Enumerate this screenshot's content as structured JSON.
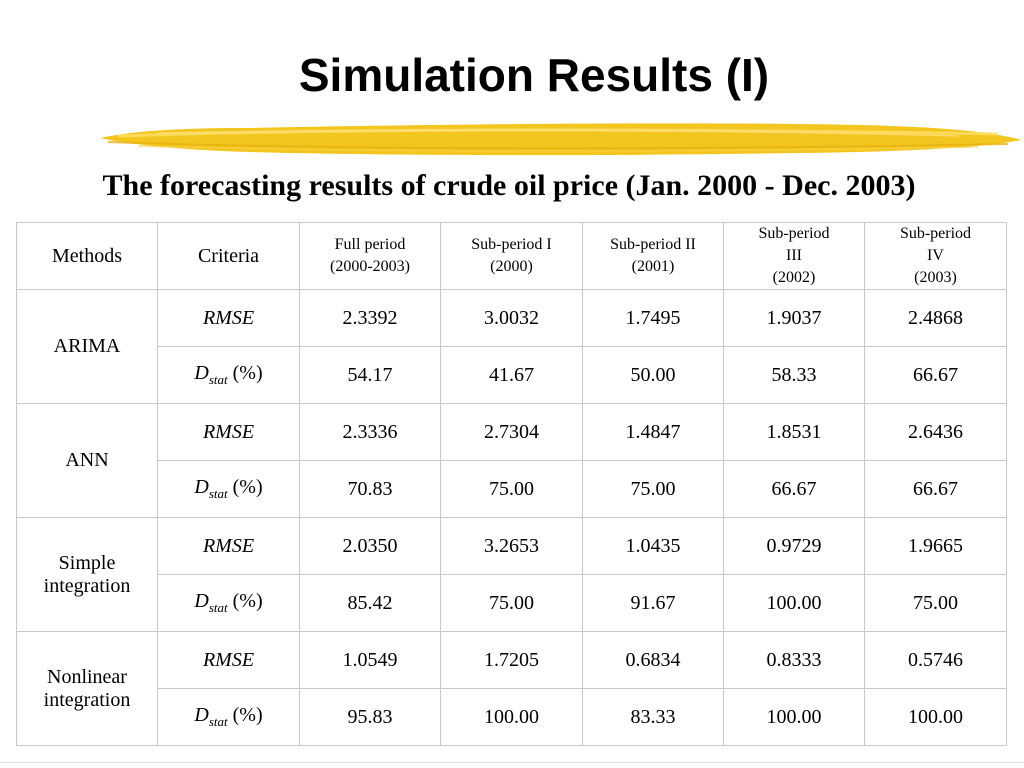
{
  "slide": {
    "title": "Simulation Results (I)",
    "subtitle": "The forecasting results of crude oil price (Jan. 2000 - Dec. 2003)",
    "accent_color": "#f0c020"
  },
  "table": {
    "header": {
      "methods": "Methods",
      "criteria": "Criteria",
      "periods": [
        {
          "line1": "Full period",
          "line2": "(2000-2003)"
        },
        {
          "line1": "Sub-period I",
          "line2": "(2000)"
        },
        {
          "line1": "Sub-period II",
          "line2": "(2001)"
        },
        {
          "line1": "Sub-period",
          "line2": "III",
          "line3": "(2002)"
        },
        {
          "line1": "Sub-period",
          "line2": "IV",
          "line3": "(2003)"
        }
      ]
    },
    "criteria_labels": {
      "rmse": "RMSE",
      "dstat_main": "D",
      "dstat_sub": "stat",
      "dstat_unit": " (%)"
    },
    "methods": [
      {
        "name_line1": "ARIMA",
        "name_line2": "",
        "rmse": [
          "2.3392",
          "3.0032",
          "1.7495",
          "1.9037",
          "2.4868"
        ],
        "dstat": [
          "54.17",
          "41.67",
          "50.00",
          "58.33",
          "66.67"
        ]
      },
      {
        "name_line1": "ANN",
        "name_line2": "",
        "rmse": [
          "2.3336",
          "2.7304",
          "1.4847",
          "1.8531",
          "2.6436"
        ],
        "dstat": [
          "70.83",
          "75.00",
          "75.00",
          "66.67",
          "66.67"
        ]
      },
      {
        "name_line1": "Simple",
        "name_line2": "integration",
        "rmse": [
          "2.0350",
          "3.2653",
          "1.0435",
          "0.9729",
          "1.9665"
        ],
        "dstat": [
          "85.42",
          "75.00",
          "91.67",
          "100.00",
          "75.00"
        ]
      },
      {
        "name_line1": "Nonlinear",
        "name_line2": "integration",
        "rmse": [
          "1.0549",
          "1.7205",
          "0.6834",
          "0.8333",
          "0.5746"
        ],
        "dstat": [
          "95.83",
          "100.00",
          "83.33",
          "100.00",
          "100.00"
        ]
      }
    ]
  }
}
